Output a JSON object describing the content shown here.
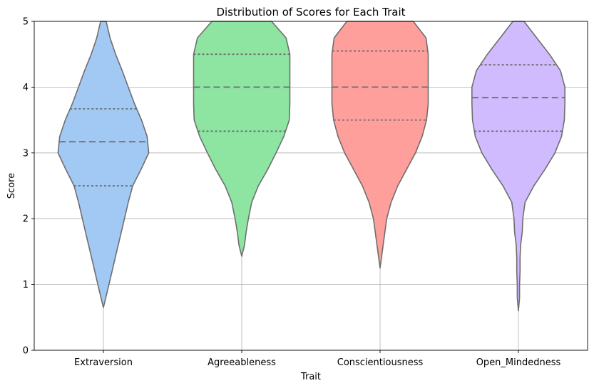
{
  "chart_data": {
    "type": "violin",
    "title": "Distribution of Scores for Each Trait",
    "xlabel": "Trait",
    "ylabel": "Score",
    "ylim": [
      0,
      5
    ],
    "yticks": [
      "0",
      "1",
      "2",
      "3",
      "4",
      "5"
    ],
    "grid": true,
    "categories": [
      "Extraversion",
      "Agreeableness",
      "Conscientiousness",
      "Open_Mindedness"
    ],
    "violins": [
      {
        "category": "Extraversion",
        "color": "#a1c9f4",
        "quartiles": [
          2.5,
          3.17,
          3.67
        ],
        "min": 0.65,
        "max": 5.0,
        "profile": [
          [
            0.65,
            0
          ],
          [
            0.75,
            0.03
          ],
          [
            1.0,
            0.1
          ],
          [
            1.25,
            0.17
          ],
          [
            1.5,
            0.24
          ],
          [
            1.75,
            0.31
          ],
          [
            2.0,
            0.38
          ],
          [
            2.25,
            0.45
          ],
          [
            2.5,
            0.53
          ],
          [
            2.75,
            0.68
          ],
          [
            3.0,
            0.82
          ],
          [
            3.25,
            0.79
          ],
          [
            3.5,
            0.69
          ],
          [
            3.75,
            0.56
          ],
          [
            4.0,
            0.45
          ],
          [
            4.25,
            0.34
          ],
          [
            4.5,
            0.22
          ],
          [
            4.75,
            0.12
          ],
          [
            5.0,
            0.05
          ]
        ]
      },
      {
        "category": "Agreeableness",
        "color": "#8de5a1",
        "quartiles": [
          3.33,
          4.0,
          4.5
        ],
        "min": 1.43,
        "max": 5.0,
        "profile": [
          [
            1.43,
            0
          ],
          [
            1.6,
            0.05
          ],
          [
            1.8,
            0.08
          ],
          [
            2.0,
            0.12
          ],
          [
            2.25,
            0.18
          ],
          [
            2.5,
            0.3
          ],
          [
            2.75,
            0.47
          ],
          [
            3.0,
            0.62
          ],
          [
            3.25,
            0.76
          ],
          [
            3.5,
            0.86
          ],
          [
            3.75,
            0.87
          ],
          [
            4.0,
            0.87
          ],
          [
            4.25,
            0.87
          ],
          [
            4.5,
            0.87
          ],
          [
            4.75,
            0.8
          ],
          [
            5.0,
            0.54
          ]
        ]
      },
      {
        "category": "Conscientiousness",
        "color": "#ff9f9b",
        "quartiles": [
          3.5,
          4.0,
          4.55
        ],
        "min": 1.25,
        "max": 5.0,
        "profile": [
          [
            1.25,
            0
          ],
          [
            1.5,
            0.04
          ],
          [
            1.75,
            0.08
          ],
          [
            2.0,
            0.12
          ],
          [
            2.25,
            0.2
          ],
          [
            2.5,
            0.32
          ],
          [
            2.75,
            0.48
          ],
          [
            3.0,
            0.64
          ],
          [
            3.25,
            0.76
          ],
          [
            3.5,
            0.84
          ],
          [
            3.75,
            0.87
          ],
          [
            4.0,
            0.87
          ],
          [
            4.25,
            0.87
          ],
          [
            4.5,
            0.87
          ],
          [
            4.75,
            0.83
          ],
          [
            5.0,
            0.6
          ]
        ]
      },
      {
        "category": "Open_Mindedness",
        "color": "#d0bbff",
        "quartiles": [
          3.33,
          3.84,
          4.34
        ],
        "min": 0.6,
        "max": 5.0,
        "profile": [
          [
            0.6,
            0
          ],
          [
            0.8,
            0.02
          ],
          [
            1.0,
            0.02
          ],
          [
            1.2,
            0.03
          ],
          [
            1.4,
            0.03
          ],
          [
            1.6,
            0.04
          ],
          [
            1.8,
            0.07
          ],
          [
            2.0,
            0.08
          ],
          [
            2.25,
            0.12
          ],
          [
            2.5,
            0.28
          ],
          [
            2.75,
            0.48
          ],
          [
            3.0,
            0.66
          ],
          [
            3.25,
            0.78
          ],
          [
            3.5,
            0.83
          ],
          [
            3.75,
            0.84
          ],
          [
            4.0,
            0.84
          ],
          [
            4.25,
            0.76
          ],
          [
            4.5,
            0.56
          ],
          [
            4.75,
            0.33
          ],
          [
            5.0,
            0.1
          ]
        ]
      }
    ]
  }
}
